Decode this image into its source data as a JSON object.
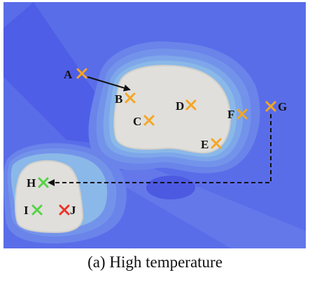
{
  "caption": "(a) High temperature",
  "colors": {
    "deep": "#5a6de9",
    "band1": "#6a84ea",
    "band2": "#7393eb",
    "band3": "#7ea6ea",
    "band4": "#8ab8e8",
    "island": "#e0dfdb",
    "island_edge": "#d2d0cb",
    "marker_orange": "#f5a623",
    "marker_green": "#55d246",
    "marker_red": "#e8332a",
    "arrow": "#111111"
  },
  "points": [
    {
      "id": "A",
      "label": "A",
      "marker": "orange",
      "icon": "x-mark-icon"
    },
    {
      "id": "B",
      "label": "B",
      "marker": "orange",
      "icon": "x-mark-icon"
    },
    {
      "id": "C",
      "label": "C",
      "marker": "orange",
      "icon": "x-mark-icon"
    },
    {
      "id": "D",
      "label": "D",
      "marker": "orange",
      "icon": "x-mark-icon"
    },
    {
      "id": "E",
      "label": "E",
      "marker": "orange",
      "icon": "x-mark-icon"
    },
    {
      "id": "F",
      "label": "F",
      "marker": "orange",
      "icon": "x-mark-icon"
    },
    {
      "id": "G",
      "label": "G",
      "marker": "orange",
      "icon": "x-mark-icon"
    },
    {
      "id": "H",
      "label": "H",
      "marker": "green",
      "icon": "x-mark-icon"
    },
    {
      "id": "I",
      "label": "I",
      "marker": "green",
      "icon": "x-mark-icon"
    },
    {
      "id": "J",
      "label": "J",
      "marker": "red",
      "icon": "x-mark-icon"
    }
  ],
  "arrows": [
    {
      "from": "A",
      "to": "B",
      "style": "solid"
    },
    {
      "from": "G",
      "to": "H",
      "style": "dashed"
    }
  ]
}
